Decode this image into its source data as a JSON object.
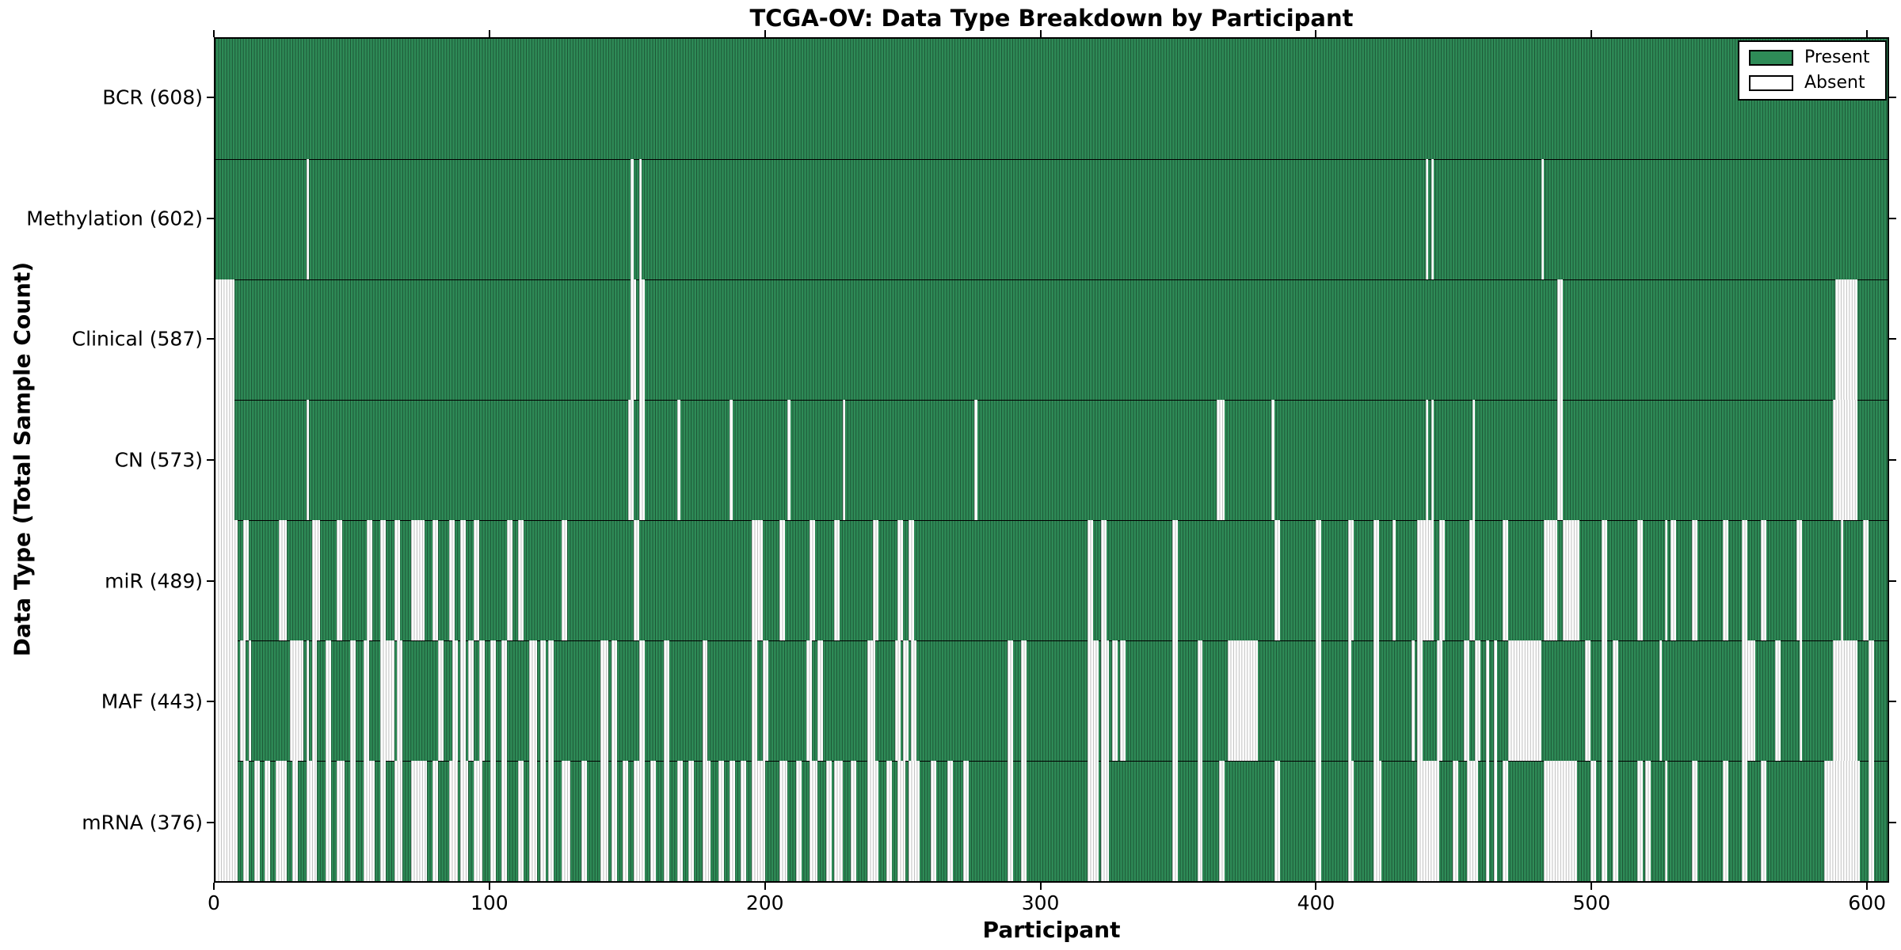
{
  "chart_data": {
    "type": "heatmap",
    "title": "TCGA-OV: Data Type Breakdown by Participant",
    "xlabel": "Participant",
    "ylabel": "Data Type (Total Sample Count)",
    "x_ticks": [
      0,
      100,
      200,
      300,
      400,
      500,
      600
    ],
    "n_participants": 608,
    "x_range": [
      0,
      608
    ],
    "grid": false,
    "legend_position": "upper right",
    "legend_entries": [
      {
        "label": "Present",
        "color": "#2e8b57"
      },
      {
        "label": "Absent",
        "color": "#ffffff"
      }
    ],
    "colors": {
      "present": "#2e8b57",
      "absent": "#ffffff",
      "edge": "#000000"
    },
    "rows": [
      {
        "name": "BCR",
        "label": "BCR (608)",
        "present_count": 608,
        "absent_ranges": []
      },
      {
        "name": "Methylation",
        "label": "Methylation (602)",
        "present_count": 602,
        "absent_ranges": [
          [
            33,
            33
          ],
          [
            151,
            151
          ],
          [
            154,
            154
          ],
          [
            440,
            440
          ],
          [
            442,
            442
          ],
          [
            482,
            482
          ]
        ]
      },
      {
        "name": "Clinical",
        "label": "Clinical (587)",
        "present_count": 587,
        "absent_ranges": [
          [
            0,
            6
          ],
          [
            151,
            152
          ],
          [
            154,
            155
          ],
          [
            488,
            489
          ],
          [
            589,
            596
          ]
        ]
      },
      {
        "name": "CN",
        "label": "CN (573)",
        "present_count": 573,
        "absent_ranges": [
          [
            0,
            6
          ],
          [
            33,
            33
          ],
          [
            150,
            151
          ],
          [
            154,
            155
          ],
          [
            168,
            168
          ],
          [
            187,
            187
          ],
          [
            208,
            208
          ],
          [
            228,
            228
          ],
          [
            276,
            276
          ],
          [
            364,
            366
          ],
          [
            384,
            384
          ],
          [
            440,
            440
          ],
          [
            442,
            442
          ],
          [
            457,
            457
          ],
          [
            488,
            489
          ],
          [
            588,
            596
          ]
        ]
      },
      {
        "name": "miR",
        "label": "miR (489)",
        "present_count": 489,
        "absent_ranges": [
          [
            0,
            7
          ],
          [
            10,
            11
          ],
          [
            23,
            25
          ],
          [
            35,
            37
          ],
          [
            44,
            45
          ],
          [
            55,
            56
          ],
          [
            60,
            61
          ],
          [
            65,
            66
          ],
          [
            71,
            75
          ],
          [
            79,
            80
          ],
          [
            85,
            86
          ],
          [
            89,
            90
          ],
          [
            94,
            95
          ],
          [
            106,
            107
          ],
          [
            110,
            111
          ],
          [
            126,
            127
          ],
          [
            152,
            153
          ],
          [
            195,
            198
          ],
          [
            205,
            206
          ],
          [
            216,
            217
          ],
          [
            225,
            226
          ],
          [
            239,
            240
          ],
          [
            248,
            249
          ],
          [
            252,
            253
          ],
          [
            317,
            318
          ],
          [
            322,
            323
          ],
          [
            348,
            349
          ],
          [
            385,
            386
          ],
          [
            400,
            401
          ],
          [
            412,
            413
          ],
          [
            421,
            422
          ],
          [
            428,
            428
          ],
          [
            437,
            442
          ],
          [
            445,
            446
          ],
          [
            456,
            457
          ],
          [
            468,
            469
          ],
          [
            483,
            487
          ],
          [
            490,
            495
          ],
          [
            504,
            505
          ],
          [
            517,
            518
          ],
          [
            527,
            527
          ],
          [
            529,
            530
          ],
          [
            537,
            538
          ],
          [
            548,
            549
          ],
          [
            555,
            556
          ],
          [
            562,
            563
          ],
          [
            575,
            576
          ],
          [
            591,
            591
          ],
          [
            599,
            600
          ]
        ]
      },
      {
        "name": "MAF",
        "label": "MAF (443)",
        "present_count": 443,
        "absent_ranges": [
          [
            0,
            7
          ],
          [
            9,
            10
          ],
          [
            12,
            12
          ],
          [
            27,
            31
          ],
          [
            33,
            33
          ],
          [
            35,
            36
          ],
          [
            40,
            41
          ],
          [
            49,
            50
          ],
          [
            54,
            55
          ],
          [
            60,
            64
          ],
          [
            66,
            67
          ],
          [
            81,
            82
          ],
          [
            86,
            87
          ],
          [
            89,
            90
          ],
          [
            92,
            93
          ],
          [
            96,
            97
          ],
          [
            100,
            101
          ],
          [
            104,
            105
          ],
          [
            114,
            116
          ],
          [
            118,
            119
          ],
          [
            121,
            122
          ],
          [
            140,
            142
          ],
          [
            144,
            145
          ],
          [
            154,
            155
          ],
          [
            163,
            164
          ],
          [
            177,
            178
          ],
          [
            195,
            196
          ],
          [
            199,
            200
          ],
          [
            215,
            216
          ],
          [
            219,
            220
          ],
          [
            237,
            239
          ],
          [
            247,
            248
          ],
          [
            250,
            251
          ],
          [
            253,
            254
          ],
          [
            288,
            289
          ],
          [
            293,
            294
          ],
          [
            317,
            320
          ],
          [
            322,
            324
          ],
          [
            326,
            327
          ],
          [
            329,
            330
          ],
          [
            348,
            349
          ],
          [
            357,
            358
          ],
          [
            368,
            378
          ],
          [
            400,
            401
          ],
          [
            412,
            412
          ],
          [
            421,
            422
          ],
          [
            435,
            435
          ],
          [
            437,
            438
          ],
          [
            444,
            445
          ],
          [
            454,
            455
          ],
          [
            458,
            459
          ],
          [
            462,
            462
          ],
          [
            465,
            465
          ],
          [
            470,
            481
          ],
          [
            498,
            499
          ],
          [
            504,
            505
          ],
          [
            508,
            509
          ],
          [
            525,
            525
          ],
          [
            555,
            559
          ],
          [
            567,
            568
          ],
          [
            576,
            576
          ],
          [
            588,
            596
          ],
          [
            601,
            602
          ]
        ]
      },
      {
        "name": "mRNA",
        "label": "mRNA (376)",
        "present_count": 376,
        "absent_ranges": [
          [
            0,
            7
          ],
          [
            10,
            11
          ],
          [
            14,
            15
          ],
          [
            18,
            19
          ],
          [
            22,
            25
          ],
          [
            28,
            29
          ],
          [
            33,
            36
          ],
          [
            40,
            41
          ],
          [
            44,
            46
          ],
          [
            49,
            50
          ],
          [
            54,
            57
          ],
          [
            60,
            61
          ],
          [
            65,
            67
          ],
          [
            71,
            76
          ],
          [
            79,
            80
          ],
          [
            85,
            87
          ],
          [
            89,
            91
          ],
          [
            94,
            96
          ],
          [
            100,
            101
          ],
          [
            104,
            105
          ],
          [
            110,
            111
          ],
          [
            114,
            116
          ],
          [
            118,
            119
          ],
          [
            121,
            122
          ],
          [
            126,
            128
          ],
          [
            133,
            134
          ],
          [
            140,
            142
          ],
          [
            144,
            145
          ],
          [
            148,
            149
          ],
          [
            152,
            155
          ],
          [
            158,
            159
          ],
          [
            163,
            164
          ],
          [
            168,
            169
          ],
          [
            172,
            173
          ],
          [
            177,
            179
          ],
          [
            183,
            184
          ],
          [
            187,
            188
          ],
          [
            191,
            192
          ],
          [
            195,
            199
          ],
          [
            205,
            207
          ],
          [
            211,
            212
          ],
          [
            216,
            218
          ],
          [
            222,
            223
          ],
          [
            225,
            227
          ],
          [
            231,
            232
          ],
          [
            237,
            240
          ],
          [
            244,
            245
          ],
          [
            248,
            250
          ],
          [
            252,
            255
          ],
          [
            260,
            261
          ],
          [
            266,
            267
          ],
          [
            272,
            273
          ],
          [
            288,
            289
          ],
          [
            293,
            294
          ],
          [
            317,
            320
          ],
          [
            322,
            324
          ],
          [
            348,
            349
          ],
          [
            357,
            358
          ],
          [
            365,
            366
          ],
          [
            385,
            386
          ],
          [
            400,
            401
          ],
          [
            412,
            413
          ],
          [
            421,
            423
          ],
          [
            437,
            444
          ],
          [
            450,
            451
          ],
          [
            455,
            458
          ],
          [
            462,
            462
          ],
          [
            465,
            465
          ],
          [
            468,
            469
          ],
          [
            483,
            494
          ],
          [
            500,
            501
          ],
          [
            504,
            505
          ],
          [
            508,
            509
          ],
          [
            517,
            518
          ],
          [
            520,
            521
          ],
          [
            527,
            527
          ],
          [
            537,
            538
          ],
          [
            548,
            549
          ],
          [
            555,
            556
          ],
          [
            562,
            563
          ],
          [
            585,
            597
          ],
          [
            601,
            602
          ]
        ]
      }
    ]
  }
}
